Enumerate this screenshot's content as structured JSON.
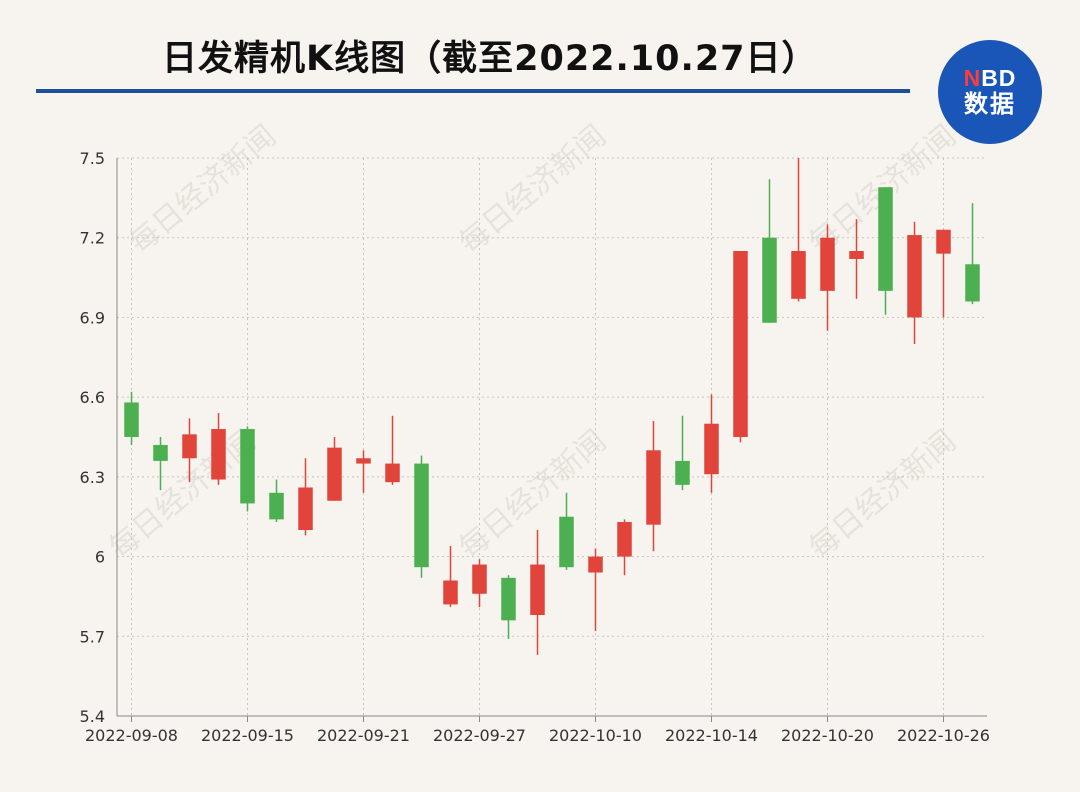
{
  "header": {
    "title": "日发精机K线图（截至2022.10.27日）",
    "logo_line1_accent": "N",
    "logo_line1_rest": "BD",
    "logo_line2": "数据",
    "watermark": "每日经济新闻"
  },
  "colors": {
    "up": "#e0443b",
    "down": "#4caf50",
    "title_rule": "#1e4f9a",
    "logo_bg": "#1a56b8",
    "grid": "#c9c4bc"
  },
  "chart_data": {
    "type": "candlestick",
    "ylim": [
      5.4,
      7.5
    ],
    "yticks": [
      "5.4",
      "5.7",
      "6",
      "6.3",
      "6.6",
      "6.9",
      "7.2",
      "7.5"
    ],
    "grid": "dotted",
    "xtick_labels": [
      "2022-09-08",
      "2022-09-15",
      "2022-09-21",
      "2022-09-27",
      "2022-10-10",
      "2022-10-14",
      "2022-10-20",
      "2022-10-26"
    ],
    "xtick_index": [
      0,
      4,
      8,
      12,
      16,
      20,
      24,
      28
    ],
    "candles": [
      {
        "o": 6.58,
        "h": 6.62,
        "l": 6.42,
        "c": 6.45
      },
      {
        "o": 6.42,
        "h": 6.45,
        "l": 6.25,
        "c": 6.36
      },
      {
        "o": 6.37,
        "h": 6.52,
        "l": 6.28,
        "c": 6.46
      },
      {
        "o": 6.29,
        "h": 6.54,
        "l": 6.27,
        "c": 6.48
      },
      {
        "o": 6.48,
        "h": 6.49,
        "l": 6.17,
        "c": 6.2
      },
      {
        "o": 6.24,
        "h": 6.29,
        "l": 6.13,
        "c": 6.14
      },
      {
        "o": 6.1,
        "h": 6.37,
        "l": 6.08,
        "c": 6.26
      },
      {
        "o": 6.21,
        "h": 6.45,
        "l": 6.21,
        "c": 6.41
      },
      {
        "o": 6.35,
        "h": 6.4,
        "l": 6.24,
        "c": 6.37
      },
      {
        "o": 6.28,
        "h": 6.53,
        "l": 6.27,
        "c": 6.35
      },
      {
        "o": 6.35,
        "h": 6.38,
        "l": 5.92,
        "c": 5.96
      },
      {
        "o": 5.82,
        "h": 6.04,
        "l": 5.81,
        "c": 5.91
      },
      {
        "o": 5.86,
        "h": 5.99,
        "l": 5.81,
        "c": 5.97
      },
      {
        "o": 5.92,
        "h": 5.93,
        "l": 5.69,
        "c": 5.76
      },
      {
        "o": 5.78,
        "h": 6.1,
        "l": 5.63,
        "c": 5.97
      },
      {
        "o": 6.15,
        "h": 6.24,
        "l": 5.95,
        "c": 5.96
      },
      {
        "o": 5.94,
        "h": 6.03,
        "l": 5.72,
        "c": 6.0
      },
      {
        "o": 6.0,
        "h": 6.14,
        "l": 5.93,
        "c": 6.13
      },
      {
        "o": 6.12,
        "h": 6.51,
        "l": 6.02,
        "c": 6.4
      },
      {
        "o": 6.36,
        "h": 6.53,
        "l": 6.25,
        "c": 6.27
      },
      {
        "o": 6.31,
        "h": 6.61,
        "l": 6.24,
        "c": 6.5
      },
      {
        "o": 6.45,
        "h": 7.15,
        "l": 6.43,
        "c": 7.15
      },
      {
        "o": 7.2,
        "h": 7.42,
        "l": 6.88,
        "c": 6.88
      },
      {
        "o": 6.97,
        "h": 7.5,
        "l": 6.96,
        "c": 7.15
      },
      {
        "o": 7.0,
        "h": 7.25,
        "l": 6.85,
        "c": 7.2
      },
      {
        "o": 7.12,
        "h": 7.27,
        "l": 6.97,
        "c": 7.15
      },
      {
        "o": 7.39,
        "h": 7.39,
        "l": 6.91,
        "c": 7.0
      },
      {
        "o": 6.9,
        "h": 7.26,
        "l": 6.8,
        "c": 7.21
      },
      {
        "o": 7.14,
        "h": 7.23,
        "l": 6.9,
        "c": 7.23
      },
      {
        "o": 7.1,
        "h": 7.33,
        "l": 6.95,
        "c": 6.96
      }
    ]
  }
}
